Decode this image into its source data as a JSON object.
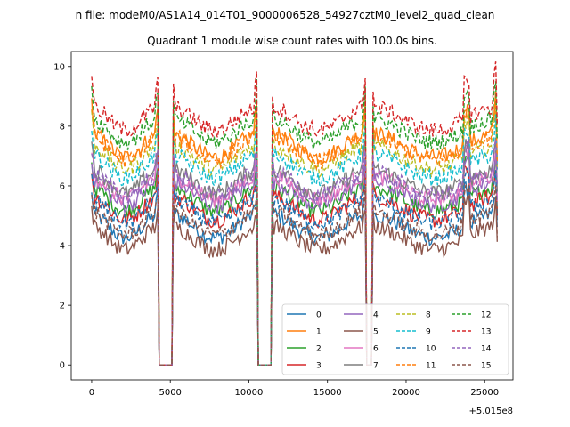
{
  "chart_data": {
    "type": "line",
    "suptitle": "n file: modeM0/AS1A14_014T01_9000006528_54927cztM0_level2_quad_clean",
    "title": "Quadrant 1 module wise count rates with 100.0s bins.",
    "xlabel": "",
    "ylabel": "",
    "x_offset_label": "+5.015e8",
    "xlim": [
      -1300,
      26800
    ],
    "ylim": [
      -0.5,
      10.5
    ],
    "x_ticks": [
      0,
      5000,
      10000,
      15000,
      20000,
      25000
    ],
    "x_tick_labels": [
      "0",
      "5000",
      "10000",
      "15000",
      "20000",
      "25000"
    ],
    "y_ticks": [
      0,
      2,
      4,
      6,
      8,
      10
    ],
    "y_tick_labels": [
      "0",
      "2",
      "4",
      "6",
      "8",
      "10"
    ],
    "legend": {
      "location": "lower-right",
      "ncols": 4
    },
    "gaps": [
      [
        4300,
        5100
      ],
      [
        10600,
        11400
      ],
      [
        17500,
        17800
      ],
      [
        25750,
        25750
      ]
    ],
    "x_range": [
      0,
      25800
    ],
    "bin_seconds": 100.0,
    "series": [
      {
        "name": "0",
        "baseline": 4.4,
        "style": "solid",
        "color": "#1f77b4"
      },
      {
        "name": "1",
        "baseline": 7.1,
        "style": "solid",
        "color": "#ff7f0e"
      },
      {
        "name": "2",
        "baseline": 5.3,
        "style": "solid",
        "color": "#2ca02c"
      },
      {
        "name": "3",
        "baseline": 5.0,
        "style": "solid",
        "color": "#d62728"
      },
      {
        "name": "4",
        "baseline": 5.5,
        "style": "solid",
        "color": "#9467bd"
      },
      {
        "name": "5",
        "baseline": 4.0,
        "style": "solid",
        "color": "#8c564b"
      },
      {
        "name": "6",
        "baseline": 5.7,
        "style": "solid",
        "color": "#e377c2"
      },
      {
        "name": "7",
        "baseline": 5.9,
        "style": "solid",
        "color": "#7f7f7f"
      },
      {
        "name": "8",
        "baseline": 6.7,
        "style": "dashed",
        "color": "#bcbd22"
      },
      {
        "name": "9",
        "baseline": 6.4,
        "style": "dashed",
        "color": "#17becf"
      },
      {
        "name": "10",
        "baseline": 4.9,
        "style": "dashed",
        "color": "#1f77b4"
      },
      {
        "name": "11",
        "baseline": 7.0,
        "style": "dashed",
        "color": "#ff7f0e"
      },
      {
        "name": "12",
        "baseline": 7.6,
        "style": "dashed",
        "color": "#2ca02c"
      },
      {
        "name": "13",
        "baseline": 8.0,
        "style": "dashed",
        "color": "#d62728"
      },
      {
        "name": "14",
        "baseline": 5.8,
        "style": "dashed",
        "color": "#9467bd"
      },
      {
        "name": "15",
        "baseline": 4.5,
        "style": "dashed",
        "color": "#8c564b"
      }
    ]
  }
}
